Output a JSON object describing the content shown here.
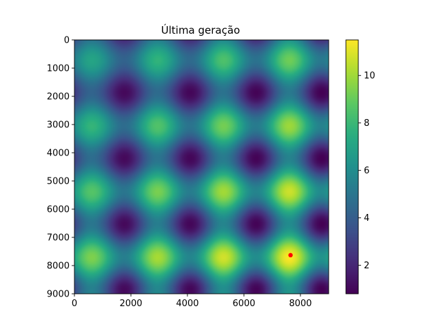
{
  "chart_data": {
    "type": "heatmap",
    "title": "Última geração",
    "xlabel": "",
    "ylabel": "",
    "xlim": [
      0,
      9000
    ],
    "ylim": [
      9000,
      0
    ],
    "x_ticks": [
      "0",
      "2000",
      "4000",
      "6000",
      "8000"
    ],
    "y_ticks": [
      "0",
      "1000",
      "2000",
      "3000",
      "4000",
      "5000",
      "6000",
      "7000",
      "8000",
      "9000"
    ],
    "colormap": "viridis",
    "colorbar": {
      "range": [
        0.8,
        11.5
      ],
      "ticks": [
        "2",
        "4",
        "6",
        "8",
        "10"
      ]
    },
    "surface_description": "smooth periodic field with maxima spaced ~2300 units; values increase toward bottom-right",
    "peaks": [
      {
        "x": 7650,
        "y": 7650,
        "value": 11.4
      },
      {
        "x": 5350,
        "y": 7800,
        "value": 10.2
      },
      {
        "x": 7600,
        "y": 5400,
        "value": 9.9
      },
      {
        "x": 3000,
        "y": 7800,
        "value": 9.0
      },
      {
        "x": 7600,
        "y": 3000,
        "value": 8.8
      },
      {
        "x": 5300,
        "y": 5400,
        "value": 8.6
      },
      {
        "x": 600,
        "y": 7800,
        "value": 7.8
      },
      {
        "x": 3000,
        "y": 5400,
        "value": 7.6
      },
      {
        "x": 5300,
        "y": 3000,
        "value": 7.2
      },
      {
        "x": 7600,
        "y": 700,
        "value": 7.0
      }
    ],
    "minima": [
      {
        "x": 1700,
        "y": 1650,
        "value": 0.8
      },
      {
        "x": 4000,
        "y": 1700,
        "value": 1.6
      },
      {
        "x": 1800,
        "y": 4000,
        "value": 2.0
      }
    ],
    "series": [
      {
        "type": "scatter",
        "x": [
          7650
        ],
        "y": [
          7630
        ],
        "color": "#ff0000"
      }
    ]
  }
}
